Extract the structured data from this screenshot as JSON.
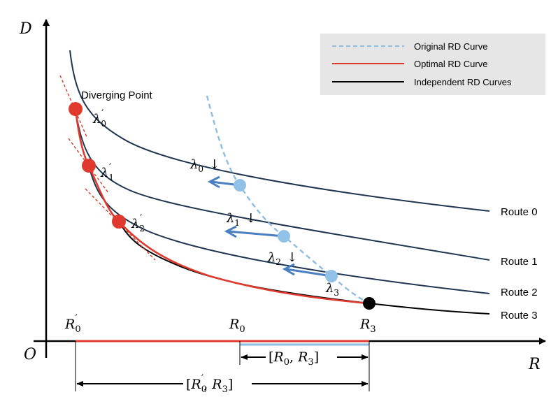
{
  "axes": {
    "y_label": "D",
    "x_label": "R",
    "origin_label": "O"
  },
  "legend": {
    "items": [
      {
        "label": "Original RD Curve",
        "color": "#8fbde0",
        "style": "dashed"
      },
      {
        "label": "Optimal RD Curve",
        "color": "#e03a2e",
        "style": "solid"
      },
      {
        "label": "Independent RD Curves",
        "color": "#000000",
        "style": "solid"
      }
    ]
  },
  "annotations": {
    "diverging_point": "Diverging Point"
  },
  "routes": [
    {
      "label": "Route 0"
    },
    {
      "label": "Route 1"
    },
    {
      "label": "Route 2"
    },
    {
      "label": "Route 3"
    }
  ],
  "lambda_labels": {
    "prime": [
      {
        "base": "λ",
        "sub": "0",
        "prime": "′"
      },
      {
        "base": "λ",
        "sub": "1",
        "prime": "′"
      },
      {
        "base": "λ",
        "sub": "2",
        "prime": "′"
      }
    ],
    "plain": [
      {
        "base": "λ",
        "sub": "0",
        "arrow": "↓"
      },
      {
        "base": "λ",
        "sub": "1",
        "arrow": "↓"
      },
      {
        "base": "λ",
        "sub": "2",
        "arrow": "↓"
      },
      {
        "base": "λ",
        "sub": "3",
        "arrow": ""
      }
    ]
  },
  "x_ticks": {
    "r0_prime": {
      "base": "R",
      "sub": "0",
      "prime": "′"
    },
    "r0": {
      "base": "R",
      "sub": "0"
    },
    "r3": {
      "base": "R",
      "sub": "3"
    }
  },
  "intervals": {
    "short": {
      "open": "[",
      "a": "R",
      "a_sub": "0",
      "sep": ", ",
      "b": "R",
      "b_sub": "3",
      "close": "]"
    },
    "long": {
      "open": "[",
      "a": "R",
      "a_sub": "0",
      "a_prime": "′",
      "sep": ", ",
      "b": "R",
      "b_sub": "3",
      "close": "]"
    }
  },
  "colors": {
    "route_curve": "#1f3550",
    "route3_curve": "#000000",
    "optimal": "#e03a2e",
    "original": "#8fbde0",
    "blue_point": "#92c1e8",
    "arrow_blue": "#4a7fc1",
    "legend_bg": "#e6e6e6"
  }
}
